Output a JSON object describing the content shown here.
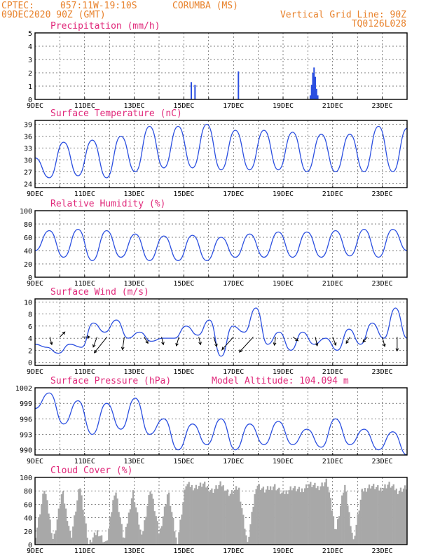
{
  "header": {
    "source": "CPTEC:",
    "coords": "057:11W-19:10S",
    "station": "CORUMBA (MS)",
    "run": "09DEC2020 90Z (GMT)",
    "grid_note": "Vertical Grid Line: 90Z",
    "code": "TQ0126L028"
  },
  "colors": {
    "header": "#e8822c",
    "title": "#e0287a",
    "line": "#2b4fe0",
    "cloud": "#a8a8a8"
  },
  "chart_data": [
    {
      "id": "precip",
      "type": "bar",
      "title": "Precipitation (mm/h)",
      "xlabels": [
        "9DEC",
        "11DEC",
        "13DEC",
        "15DEC",
        "17DEC",
        "19DEC",
        "21DEC",
        "23DEC"
      ],
      "ylim": [
        0,
        5
      ],
      "yticks": [
        0,
        1,
        2,
        3,
        4,
        5
      ],
      "grid": true,
      "bars": [
        {
          "day": 15.3,
          "value": 1.3
        },
        {
          "day": 15.45,
          "value": 1.1
        },
        {
          "day": 17.2,
          "value": 2.1
        },
        {
          "day": 20.1,
          "value": 0.3
        },
        {
          "day": 20.15,
          "value": 1.1
        },
        {
          "day": 20.2,
          "value": 2.0
        },
        {
          "day": 20.25,
          "value": 2.4
        },
        {
          "day": 20.3,
          "value": 1.7
        },
        {
          "day": 20.35,
          "value": 0.8
        },
        {
          "day": 20.4,
          "value": 0.3
        }
      ]
    },
    {
      "id": "temp",
      "type": "line",
      "title": "Surface Temperature (nC)",
      "xlabels": [
        "9DEC",
        "11DEC",
        "13DEC",
        "15DEC",
        "17DEC",
        "19DEC",
        "21DEC",
        "23DEC"
      ],
      "ylim": [
        23,
        40
      ],
      "yticks": [
        24,
        27,
        30,
        33,
        36,
        39
      ],
      "grid": true,
      "values": [
        30.5,
        25.5,
        34.5,
        26,
        35,
        25.5,
        36,
        27,
        38.5,
        28,
        38.5,
        28,
        39,
        27.5,
        37.5,
        27.5,
        37.5,
        27.5,
        37,
        27,
        36.5,
        27,
        36.5,
        27,
        38.5,
        27,
        38
      ]
    },
    {
      "id": "rh",
      "type": "line",
      "title": "Relative Humidity (%)",
      "xlabels": [
        "9DEC",
        "11DEC",
        "13DEC",
        "15DEC",
        "17DEC",
        "19DEC",
        "21DEC",
        "23DEC"
      ],
      "ylim": [
        0,
        100
      ],
      "yticks": [
        0,
        20,
        40,
        60,
        80,
        100
      ],
      "grid": true,
      "values": [
        40,
        70,
        30,
        72,
        25,
        70,
        30,
        65,
        25,
        62,
        25,
        63,
        25,
        60,
        30,
        65,
        30,
        68,
        30,
        68,
        30,
        70,
        32,
        72,
        30,
        72,
        40
      ]
    },
    {
      "id": "wind",
      "type": "line",
      "title": "Surface Wind (m/s)",
      "xlabels": [
        "9DEC",
        "11DEC",
        "13DEC",
        "15DEC",
        "17DEC",
        "19DEC",
        "21DEC",
        "23DEC"
      ],
      "ylim": [
        -0.5,
        10.5
      ],
      "yticks": [
        0,
        2,
        4,
        6,
        8,
        10
      ],
      "grid": true,
      "values": [
        3,
        2.5,
        1.5,
        3,
        2.5,
        6.5,
        5,
        7,
        4,
        5,
        3.5,
        4,
        4,
        6,
        4.5,
        7,
        1,
        6,
        5,
        9,
        3,
        5,
        2,
        5,
        3,
        4,
        2,
        5.5,
        3,
        6.5,
        4,
        9,
        4
      ],
      "vectors": [
        {
          "day": 9.6,
          "u": 0.3,
          "v": -1.2
        },
        {
          "day": 10.0,
          "u": 0.8,
          "v": 0.8
        },
        {
          "day": 10.9,
          "u": 1.2,
          "v": 0.0
        },
        {
          "day": 11.5,
          "u": -0.6,
          "v": -1.6
        },
        {
          "day": 11.9,
          "u": -2.0,
          "v": -2.5
        },
        {
          "day": 12.6,
          "u": -0.3,
          "v": -2.0
        },
        {
          "day": 13.4,
          "u": 0.6,
          "v": -1.0
        },
        {
          "day": 14.1,
          "u": 0.3,
          "v": -1.2
        },
        {
          "day": 14.8,
          "u": -0.4,
          "v": -1.4
        },
        {
          "day": 15.6,
          "u": 0.3,
          "v": -1.2
        },
        {
          "day": 16.2,
          "u": 0.5,
          "v": -1.5
        },
        {
          "day": 17.0,
          "u": -1.8,
          "v": -2.0
        },
        {
          "day": 17.8,
          "u": -2.2,
          "v": -2.4
        },
        {
          "day": 18.7,
          "u": -0.2,
          "v": -1.3
        },
        {
          "day": 19.4,
          "u": 0.8,
          "v": -0.6
        },
        {
          "day": 20.3,
          "u": 0.3,
          "v": -1.4
        },
        {
          "day": 21.0,
          "u": 0.5,
          "v": -1.3
        },
        {
          "day": 21.7,
          "u": -0.6,
          "v": -1.0
        },
        {
          "day": 22.4,
          "u": -0.7,
          "v": -0.8
        },
        {
          "day": 23.0,
          "u": 0.4,
          "v": -1.5
        },
        {
          "day": 23.6,
          "u": 0.0,
          "v": -2.2
        }
      ]
    },
    {
      "id": "pressure",
      "type": "line",
      "title": "Surface Pressure (hPa)",
      "subtitle": "Model Altitude: 104.094 m",
      "xlabels": [
        "9DEC",
        "11DEC",
        "13DEC",
        "15DEC",
        "17DEC",
        "19DEC",
        "21DEC",
        "23DEC"
      ],
      "ylim": [
        989,
        1002
      ],
      "yticks": [
        990,
        993,
        996,
        999,
        1002
      ],
      "grid": true,
      "values": [
        998,
        1001,
        995,
        999.5,
        993,
        999,
        994,
        1000,
        993,
        996,
        990,
        995,
        991,
        996,
        990,
        995,
        991,
        995.5,
        991,
        994,
        990.5,
        996,
        991,
        994,
        990,
        993.5,
        989
      ]
    },
    {
      "id": "cloud",
      "type": "area",
      "title": "Cloud Cover (%)",
      "xlabels": [
        "9DEC",
        "11DEC",
        "13DEC",
        "15DEC",
        "17DEC",
        "19DEC",
        "21DEC",
        "23DEC"
      ],
      "ylim": [
        0,
        100
      ],
      "yticks": [
        0,
        20,
        40,
        60,
        80,
        100
      ],
      "grid": true,
      "values": [
        15,
        85,
        5,
        80,
        10,
        88,
        0,
        20,
        0,
        85,
        5,
        80,
        10,
        85,
        15,
        80,
        0,
        90,
        85,
        90,
        80,
        90,
        75,
        85,
        0,
        90,
        80,
        88,
        75,
        85,
        80,
        90,
        85,
        95,
        20,
        90,
        5,
        80,
        88,
        82,
        90,
        80,
        85
      ]
    }
  ]
}
